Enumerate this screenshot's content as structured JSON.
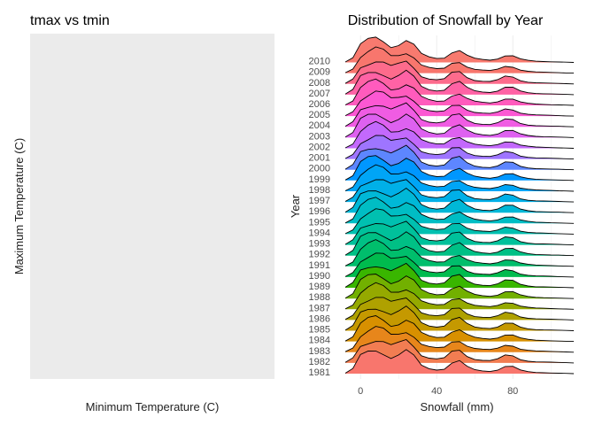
{
  "chart_data": [
    {
      "type": "scatter",
      "title": "tmax vs tmin",
      "xlabel": "Minimum Temperature (C)",
      "ylabel": "Maximum Temperature (C)",
      "points": [],
      "panel_background": "#ebebeb"
    },
    {
      "type": "ridgeline",
      "title": "Distribution of Snowfall by Year",
      "xlabel": "Snowfall (mm)",
      "ylabel": "Year",
      "xlim": [
        -8,
        112
      ],
      "xticks": [
        0,
        40,
        80
      ],
      "grid": true,
      "categories": [
        "1981",
        "1982",
        "1983",
        "1984",
        "1985",
        "1986",
        "1987",
        "1988",
        "1989",
        "1990",
        "1991",
        "1992",
        "1993",
        "1994",
        "1995",
        "1996",
        "1997",
        "1998",
        "1999",
        "2000",
        "2001",
        "2002",
        "2003",
        "2004",
        "2005",
        "2006",
        "2007",
        "2008",
        "2009",
        "2010"
      ],
      "density_x": [
        -8,
        -4,
        0,
        4,
        8,
        12,
        16,
        20,
        24,
        28,
        32,
        36,
        40,
        44,
        48,
        52,
        56,
        60,
        64,
        68,
        72,
        76,
        80,
        84,
        88,
        92,
        96,
        100,
        104,
        108,
        112
      ],
      "density_profile": [
        0.02,
        0.2,
        0.72,
        0.9,
        1.0,
        0.9,
        0.7,
        0.78,
        0.92,
        0.7,
        0.34,
        0.22,
        0.17,
        0.2,
        0.44,
        0.5,
        0.28,
        0.16,
        0.12,
        0.1,
        0.16,
        0.3,
        0.28,
        0.14,
        0.08,
        0.05,
        0.04,
        0.03,
        0.02,
        0.01,
        0.0
      ],
      "colors": [
        "#f8766d",
        "#f27d52",
        "#e7861b",
        "#d89000",
        "#c59900",
        "#afa100",
        "#95a900",
        "#72b000",
        "#39b600",
        "#00bb4e",
        "#00be6c",
        "#00c085",
        "#00c19b",
        "#00c0b0",
        "#00bdc4",
        "#00b8d7",
        "#00b0e8",
        "#00a5f6",
        "#0097ff",
        "#5d86ff",
        "#9e75ff",
        "#c369fc",
        "#de61f0",
        "#f05ce3",
        "#fc58d3",
        "#ff5bbd",
        "#ff62a5",
        "#fd6b8c",
        "#f8766d",
        "#f87a6f"
      ]
    }
  ]
}
